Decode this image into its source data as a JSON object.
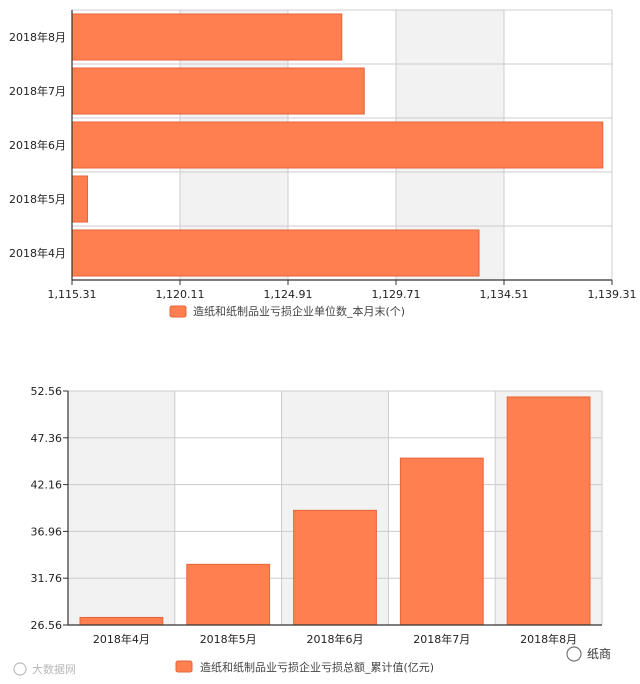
{
  "colors": {
    "bar": "#FF7F50",
    "bar_stroke": "#E5653A",
    "band_gray": "#F2F2F2",
    "band_white": "#FFFFFF",
    "grid": "#CCCCCC",
    "axis": "#333333"
  },
  "chart_data": [
    {
      "type": "bar",
      "orientation": "horizontal",
      "categories": [
        "2018年8月",
        "2018年7月",
        "2018年6月",
        "2018年5月",
        "2018年4月"
      ],
      "values": [
        1127.3,
        1128.3,
        1138.9,
        1116.0,
        1133.4
      ],
      "xlim": [
        1115.31,
        1139.31
      ],
      "x_ticks": [
        "1,115.31",
        "1,120.11",
        "1,124.91",
        "1,129.71",
        "1,134.51",
        "1,139.31"
      ],
      "grid": true,
      "legend": [
        "造纸和纸制品业亏损企业单位数_本月末(个)"
      ],
      "legend_position": "bottom"
    },
    {
      "type": "bar",
      "orientation": "vertical",
      "categories": [
        "2018年4月",
        "2018年5月",
        "2018年6月",
        "2018年7月",
        "2018年8月"
      ],
      "values": [
        27.4,
        33.3,
        39.3,
        45.1,
        51.9
      ],
      "ylim": [
        26.56,
        52.56
      ],
      "y_ticks": [
        "52.56",
        "47.36",
        "42.16",
        "36.96",
        "31.76",
        "26.56"
      ],
      "grid": true,
      "legend": [
        "造纸和纸制品业亏损企业亏损总额_累计值(亿元)"
      ],
      "legend_position": "bottom"
    }
  ],
  "watermarks": {
    "source": "大数据网",
    "brand": "纸商"
  }
}
